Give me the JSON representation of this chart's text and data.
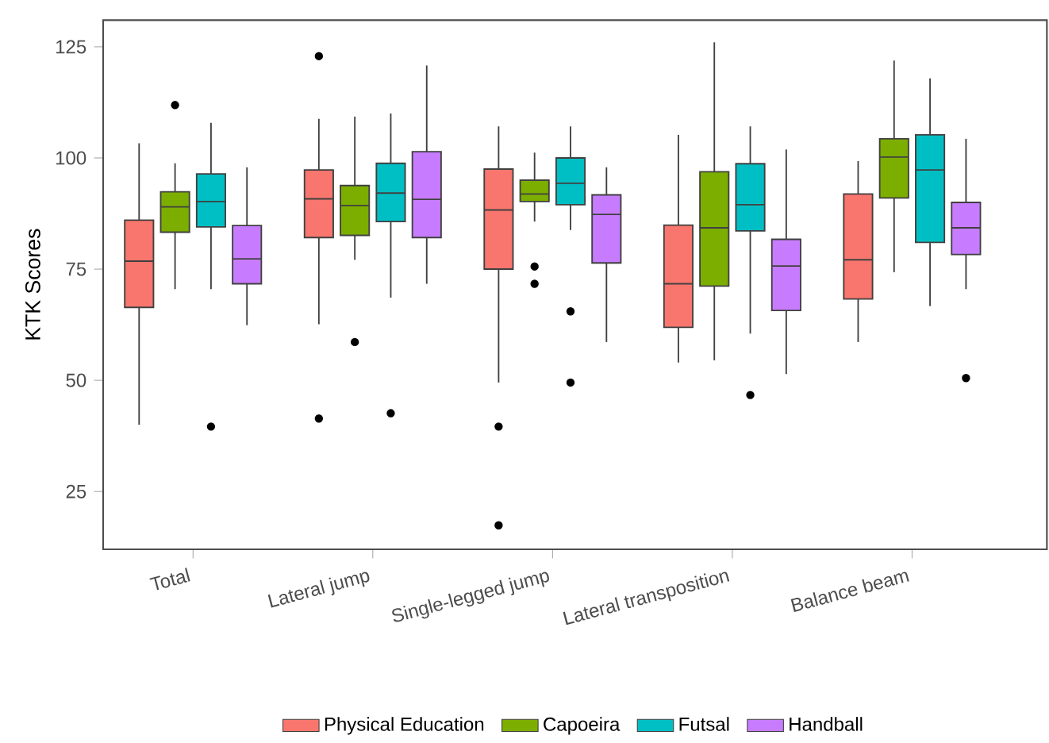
{
  "chart_data": {
    "type": "box",
    "ylabel": "KTK Scores",
    "categories": [
      "Total",
      "Lateral jump",
      "Single-legged jump",
      "Lateral transposition",
      "Balance beam"
    ],
    "ylim": [
      12,
      131
    ],
    "yticks": [
      25,
      50,
      75,
      100,
      125
    ],
    "legend": "bottom",
    "grid": false,
    "series": [
      {
        "name": "Physical Education",
        "color": "#f8766d",
        "boxes": [
          {
            "low": 40,
            "q1": 66.4,
            "median": 76.8,
            "q3": 86,
            "high": 103.3
          },
          {
            "low": 62.6,
            "q1": 82.1,
            "median": 90.8,
            "q3": 97.3,
            "high": 108.8,
            "outliers": [
              122.9,
              41.4
            ]
          },
          {
            "low": 49.5,
            "q1": 75,
            "median": 88.3,
            "q3": 97.5,
            "high": 107.1,
            "outliers": [
              39.6,
              17.4
            ]
          },
          {
            "low": 54,
            "q1": 61.9,
            "median": 71.7,
            "q3": 84.9,
            "high": 105.2
          },
          {
            "low": 58.6,
            "q1": 68.3,
            "median": 77.1,
            "q3": 91.9,
            "high": 99.3
          }
        ]
      },
      {
        "name": "Capoeira",
        "color": "#7cae00",
        "boxes": [
          {
            "low": 70.5,
            "q1": 83.3,
            "median": 89,
            "q3": 92.4,
            "high": 98.8,
            "outliers": [
              111.9
            ]
          },
          {
            "low": 77.1,
            "q1": 82.6,
            "median": 89.3,
            "q3": 93.8,
            "high": 109.3,
            "outliers": [
              58.6
            ]
          },
          {
            "low": 85.7,
            "q1": 90.2,
            "median": 91.9,
            "q3": 95,
            "high": 101.2,
            "outliers": [
              75.6,
              71.7
            ]
          },
          {
            "low": 54.5,
            "q1": 71.2,
            "median": 84.3,
            "q3": 96.9,
            "high": 126
          },
          {
            "low": 74.3,
            "q1": 91,
            "median": 100.2,
            "q3": 104.3,
            "high": 121.9
          }
        ]
      },
      {
        "name": "Futsal",
        "color": "#00bfc4",
        "boxes": [
          {
            "low": 70.5,
            "q1": 84.5,
            "median": 90.2,
            "q3": 96.4,
            "high": 107.9,
            "outliers": [
              39.6
            ]
          },
          {
            "low": 68.6,
            "q1": 85.7,
            "median": 92.1,
            "q3": 98.8,
            "high": 110,
            "outliers": [
              42.6
            ]
          },
          {
            "low": 83.8,
            "q1": 89.5,
            "median": 94.3,
            "q3": 100,
            "high": 107.1,
            "outliers": [
              65.5,
              49.5
            ]
          },
          {
            "low": 60.5,
            "q1": 83.6,
            "median": 89.5,
            "q3": 98.7,
            "high": 107.1,
            "outliers": [
              46.7
            ]
          },
          {
            "low": 66.7,
            "q1": 81,
            "median": 97.3,
            "q3": 105.2,
            "high": 117.9
          }
        ]
      },
      {
        "name": "Handball",
        "color": "#c77cff",
        "boxes": [
          {
            "low": 62.4,
            "q1": 71.7,
            "median": 77.3,
            "q3": 84.8,
            "high": 97.9
          },
          {
            "low": 71.7,
            "q1": 82.1,
            "median": 90.7,
            "q3": 101.4,
            "high": 120.8
          },
          {
            "low": 58.6,
            "q1": 76.4,
            "median": 87.3,
            "q3": 91.7,
            "high": 97.9
          },
          {
            "low": 51.4,
            "q1": 65.7,
            "median": 75.7,
            "q3": 81.7,
            "high": 101.9
          },
          {
            "low": 70.5,
            "q1": 78.3,
            "median": 84.3,
            "q3": 90,
            "high": 104.3,
            "outliers": [
              50.5
            ]
          }
        ]
      }
    ]
  }
}
